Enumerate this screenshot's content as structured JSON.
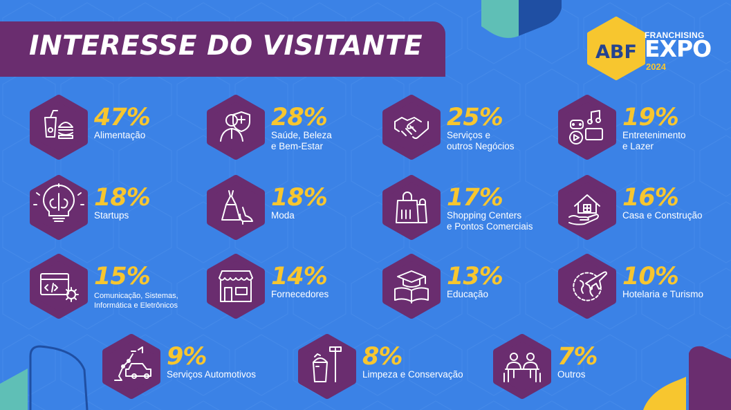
{
  "header": {
    "title": "INTERESSE DO VISITANTE"
  },
  "logo": {
    "abf": "ABF",
    "franchising": "FRANCHISING",
    "expo": "EXPO",
    "year": "2024"
  },
  "colors": {
    "background": "#3b82e6",
    "purple": "#6a2d6f",
    "yellow": "#f7c62f",
    "teal": "#5fbfb6",
    "navy": "#1f4fa3"
  },
  "items": [
    {
      "percent": "47%",
      "label": [
        "Alimentação"
      ],
      "icon": "food-drink-icon"
    },
    {
      "percent": "28%",
      "label": [
        "Saúde, Beleza",
        "e Bem-Estar"
      ],
      "icon": "health-doctor-icon"
    },
    {
      "percent": "25%",
      "label": [
        "Serviços e",
        "outros Negócios"
      ],
      "icon": "handshake-icon"
    },
    {
      "percent": "19%",
      "label": [
        "Entretenimento",
        "e Lazer"
      ],
      "icon": "entertainment-icon"
    },
    {
      "percent": "18%",
      "label": [
        "Startups"
      ],
      "icon": "lightbulb-brain-icon"
    },
    {
      "percent": "18%",
      "label": [
        "Moda"
      ],
      "icon": "fashion-dress-icon"
    },
    {
      "percent": "17%",
      "label": [
        "Shopping Centers",
        "e Pontos Comerciais"
      ],
      "icon": "shopping-bag-icon"
    },
    {
      "percent": "16%",
      "label": [
        "Casa e Construção"
      ],
      "icon": "house-hand-icon"
    },
    {
      "percent": "15%",
      "label": [
        "Comunicação, Sistemas,",
        "Informática e Eletrônicos"
      ],
      "icon": "code-window-icon"
    },
    {
      "percent": "14%",
      "label": [
        "Fornecedores"
      ],
      "icon": "storefront-icon"
    },
    {
      "percent": "13%",
      "label": [
        "Educação"
      ],
      "icon": "graduation-book-icon"
    },
    {
      "percent": "10%",
      "label": [
        "Hotelaria e Turismo"
      ],
      "icon": "globe-plane-icon"
    },
    {
      "percent": "9%",
      "label": [
        "Serviços Automotivos"
      ],
      "icon": "car-robot-icon"
    },
    {
      "percent": "8%",
      "label": [
        "Limpeza e Conservação"
      ],
      "icon": "bucket-broom-icon"
    },
    {
      "percent": "7%",
      "label": [
        "Outros"
      ],
      "icon": "people-table-icon"
    }
  ]
}
